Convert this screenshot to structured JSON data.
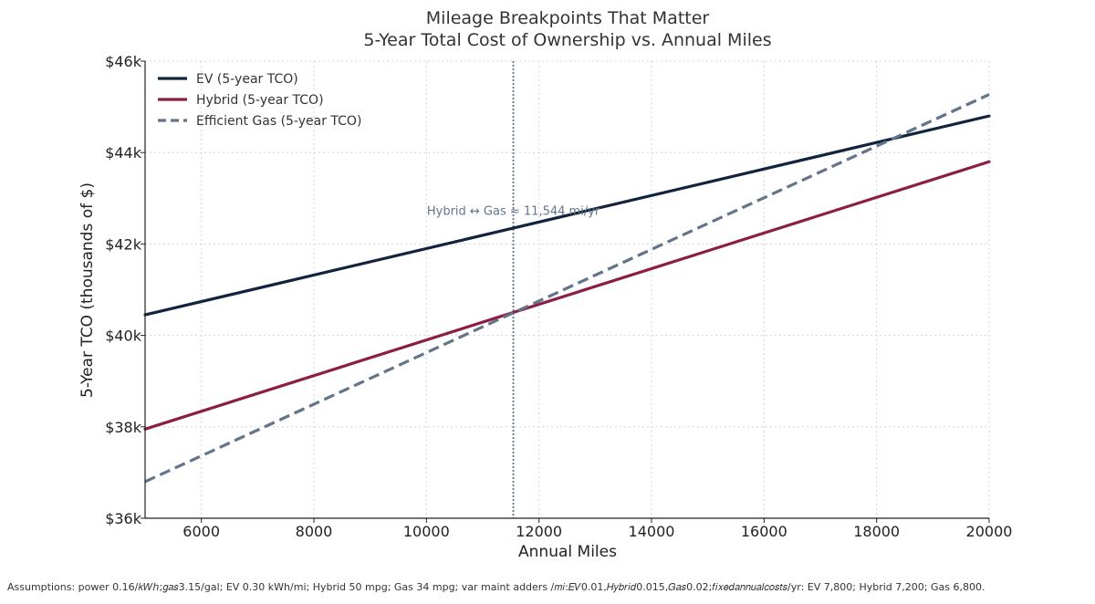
{
  "chart_data": {
    "type": "line",
    "title": "Mileage Breakpoints That Matter",
    "subtitle": "5-Year Total Cost of Ownership vs. Annual Miles",
    "xlabel": "Annual Miles",
    "ylabel": "5-Year TCO (thousands of $)",
    "xlim": [
      5000,
      20000
    ],
    "ylim": [
      36000,
      46000
    ],
    "x_ticks": [
      6000,
      8000,
      10000,
      12000,
      14000,
      16000,
      18000,
      20000
    ],
    "x_tick_labels": [
      "6000",
      "8000",
      "10000",
      "12000",
      "14000",
      "16000",
      "18000",
      "20000"
    ],
    "y_ticks": [
      36000,
      38000,
      40000,
      42000,
      44000,
      46000
    ],
    "y_tick_labels": [
      "$36k",
      "$38k",
      "$40k",
      "$42k",
      "$44k",
      "$46k"
    ],
    "grid": true,
    "legend_position": "top-left",
    "series": [
      {
        "name": "EV (5-year TCO)",
        "color": "#12233d",
        "style": "solid",
        "x": [
          5000,
          20000
        ],
        "values": [
          40450,
          44800
        ]
      },
      {
        "name": "Hybrid (5-year TCO)",
        "color": "#8b1e45",
        "style": "solid",
        "x": [
          5000,
          20000
        ],
        "values": [
          37950,
          43800
        ]
      },
      {
        "name": "Efficient Gas (5-year TCO)",
        "color": "#64748b",
        "style": "dashed",
        "x": [
          5000,
          20000
        ],
        "values": [
          36800,
          45270
        ]
      }
    ],
    "vline": {
      "x": 11544,
      "color": "#64748b",
      "style": "dotted"
    },
    "annotations": [
      {
        "text": "Hybrid ↔ Gas ≈ 11,544 mi/yr",
        "x": 11544,
        "y": 42600
      }
    ]
  },
  "footnote": "Assumptions: power 0.16/𝑘𝑊ℎ;𝑔𝑎𝑠3.15/gal; EV 0.30 kWh/mi; Hybrid 50 mpg; Gas 34 mpg; var maint adders /𝑚𝑖:𝐸𝑉0.01,𝐻𝑦𝑏𝑟𝑖𝑑0.015,𝐺𝑎𝑠0.02;𝑓𝑖𝑥𝑒𝑑𝑎𝑛𝑛𝑢𝑎𝑙𝑐𝑜𝑠𝑡𝑠/yr: EV 7,800; Hybrid 7,200; Gas 6,800."
}
